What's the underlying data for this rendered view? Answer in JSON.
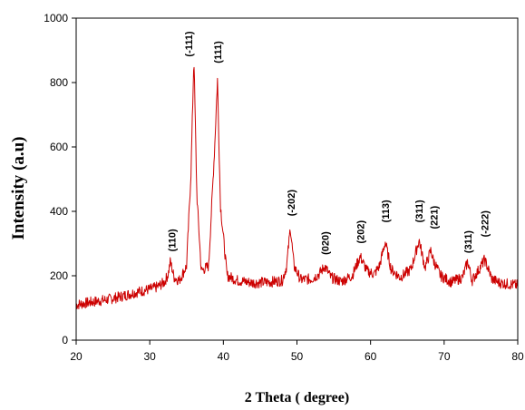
{
  "chart_data": {
    "type": "line",
    "title": "",
    "xlabel": "2 Theta ( degree)",
    "ylabel": "Intensity (a.u)",
    "xlim": [
      20,
      80
    ],
    "ylim": [
      0,
      1000
    ],
    "xticks": [
      20,
      30,
      40,
      50,
      60,
      70,
      80
    ],
    "yticks": [
      0,
      200,
      400,
      600,
      800,
      1000
    ],
    "grid": false,
    "legend": "none",
    "line_color": "#cc0000",
    "series": [
      {
        "x": [
          20,
          22,
          24,
          26,
          28,
          30,
          31,
          32,
          32.5,
          32.8,
          33.3,
          34,
          35,
          35.6,
          36.0,
          36.4,
          37,
          38,
          38.8,
          39.2,
          39.6,
          40.5,
          42,
          44,
          46,
          48,
          48.6,
          49.1,
          49.6,
          50.5,
          52,
          53,
          53.8,
          54.6,
          56,
          57.5,
          58.6,
          59.5,
          60.5,
          61.2,
          62.0,
          62.8,
          64,
          65.5,
          66.6,
          67.4,
          68.2,
          68.5,
          69.5,
          71,
          72.5,
          73.2,
          73.8,
          74.6,
          75.5,
          76.5,
          77.5,
          78.5,
          79.5,
          80
        ],
        "y": [
          110,
          118,
          125,
          135,
          148,
          158,
          165,
          180,
          205,
          245,
          195,
          185,
          230,
          520,
          880,
          450,
          215,
          230,
          590,
          810,
          420,
          200,
          185,
          178,
          180,
          185,
          230,
          350,
          230,
          188,
          190,
          205,
          230,
          195,
          182,
          200,
          260,
          215,
          205,
          230,
          305,
          220,
          195,
          220,
          310,
          225,
          280,
          250,
          200,
          180,
          195,
          245,
          185,
          215,
          250,
          190,
          178,
          175,
          172,
          170
        ]
      }
    ],
    "peak_labels": [
      {
        "text": "(110)",
        "x": 33.0,
        "y": 275
      },
      {
        "text": "(-111)",
        "x": 35.3,
        "y": 880
      },
      {
        "text": "(111)",
        "x": 39.2,
        "y": 860
      },
      {
        "text": "(-202)",
        "x": 49.2,
        "y": 385
      },
      {
        "text": "(020)",
        "x": 53.8,
        "y": 265
      },
      {
        "text": "(202)",
        "x": 58.6,
        "y": 300
      },
      {
        "text": "(113)",
        "x": 62.0,
        "y": 365
      },
      {
        "text": "(311)",
        "x": 66.6,
        "y": 365
      },
      {
        "text": "(221)",
        "x": 68.6,
        "y": 345
      },
      {
        "text": "(311)",
        "x": 73.2,
        "y": 270
      },
      {
        "text": "(-222)",
        "x": 75.5,
        "y": 320
      }
    ]
  }
}
